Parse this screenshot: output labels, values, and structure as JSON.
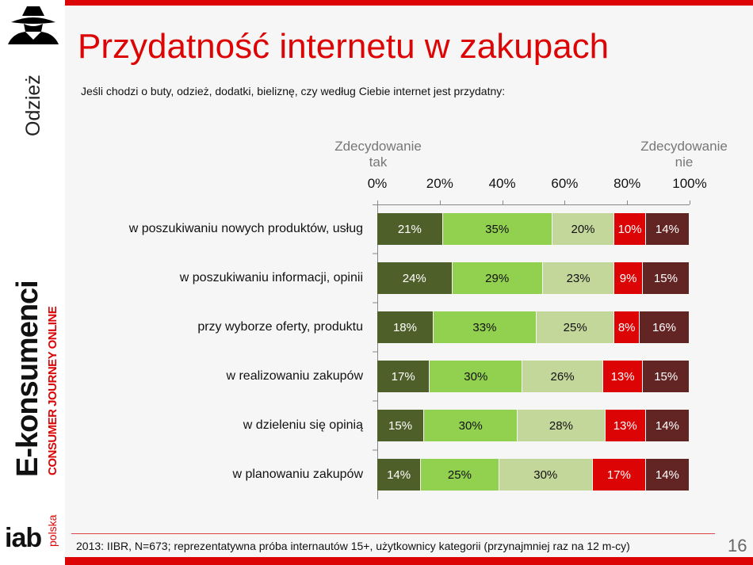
{
  "sidebar": {
    "category": "Odzież",
    "brand": "E-konsumenci",
    "brand_sub": "CONSUMER JOURNEY ONLINE",
    "logo": "iab",
    "logo_sub": "polska"
  },
  "header": {
    "title": "Przydatność internetu w zakupach",
    "question": "Jeśli chodzi o buty, odzież, dodatki, bieliznę, czy według Ciebie internet jest przydatny:"
  },
  "chart_data": {
    "type": "bar",
    "stacked": true,
    "orientation": "horizontal",
    "left_end_label": [
      "Zdecydowanie",
      "tak"
    ],
    "right_end_label": [
      "Zdecydowanie",
      "nie"
    ],
    "xticks": [
      "0%",
      "20%",
      "40%",
      "60%",
      "80%",
      "100%"
    ],
    "xlim": [
      0,
      100
    ],
    "colors": [
      "#4f5f2a",
      "#92d050",
      "#c4d79b",
      "#dc0405",
      "#632523"
    ],
    "label_colors": [
      "#fff",
      "#111",
      "#111",
      "#fff",
      "#fff"
    ],
    "categories": [
      "w poszukiwaniu nowych produktów, usług",
      "w poszukiwaniu informacji, opinii",
      "przy wyborze oferty, produktu",
      "w realizowaniu zakupów",
      "w dzieleniu się opinią",
      "w planowaniu zakupów"
    ],
    "values": [
      [
        21,
        35,
        20,
        10,
        14
      ],
      [
        24,
        29,
        23,
        9,
        15
      ],
      [
        18,
        33,
        25,
        8,
        16
      ],
      [
        17,
        30,
        26,
        13,
        15
      ],
      [
        15,
        30,
        28,
        13,
        14
      ],
      [
        14,
        25,
        30,
        17,
        14
      ]
    ]
  },
  "footer": {
    "note": "2013: IIBR, N=673; reprezentatywna próba internautów 15+, użytkownicy kategorii (przynajmniej raz na 12 m-cy)",
    "page": "16"
  }
}
